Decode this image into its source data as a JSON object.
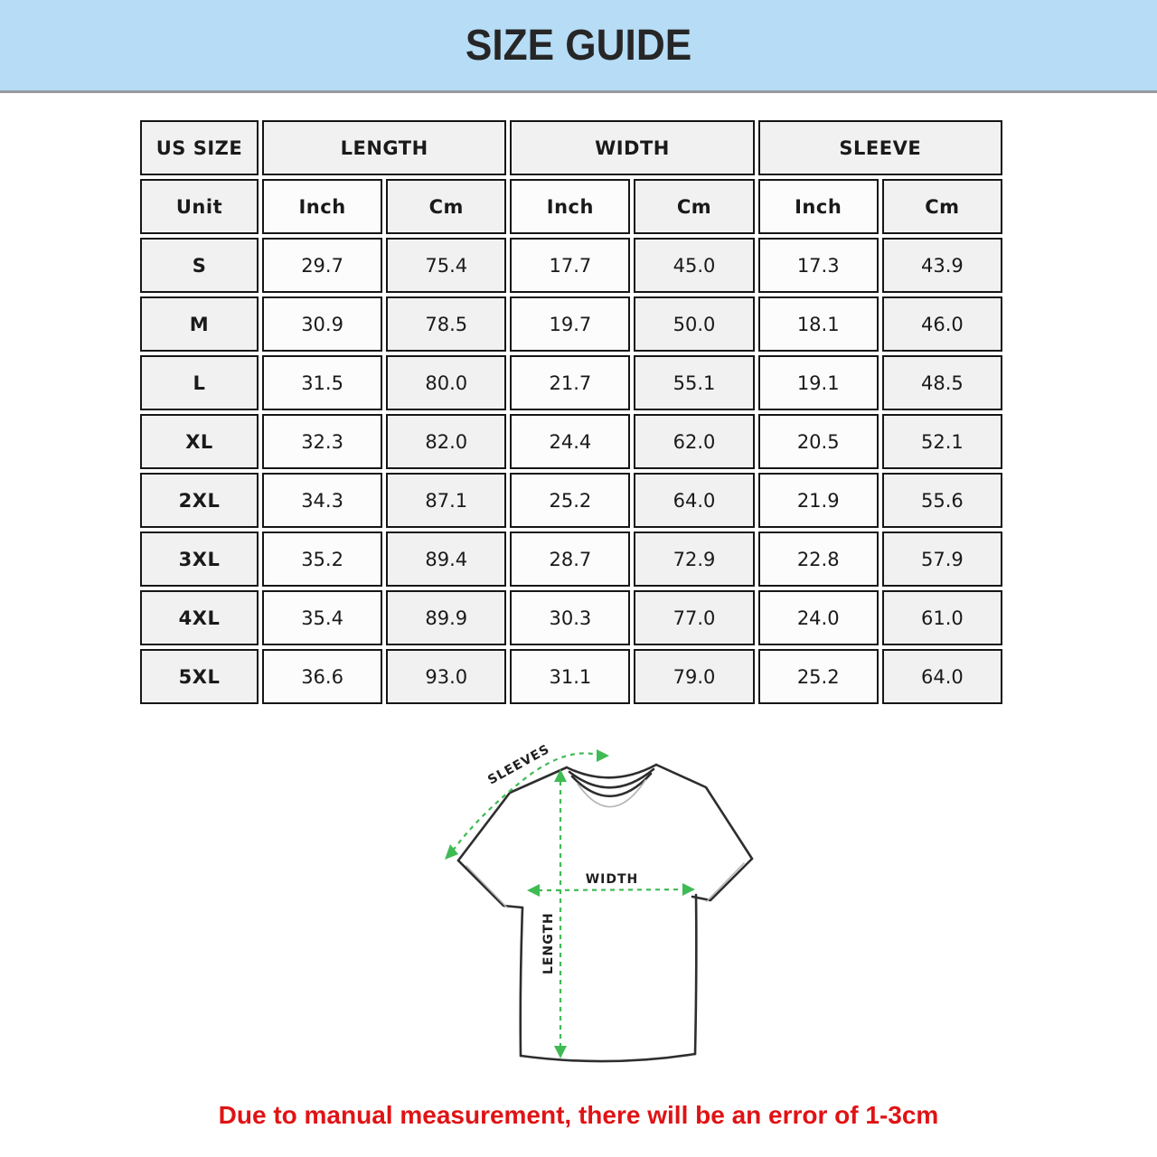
{
  "banner": {
    "title": "SIZE GUIDE",
    "bg_color": "#b6dcf6"
  },
  "table": {
    "group_headers": [
      {
        "label": "US SIZE",
        "span": 1
      },
      {
        "label": "LENGTH",
        "span": 2
      },
      {
        "label": "WIDTH",
        "span": 2
      },
      {
        "label": "SLEEVE",
        "span": 2
      }
    ],
    "unit_row": [
      "Unit",
      "Inch",
      "Cm",
      "Inch",
      "Cm",
      "Inch",
      "Cm"
    ],
    "rows": [
      {
        "size": "S",
        "values": [
          "29.7",
          "75.4",
          "17.7",
          "45.0",
          "17.3",
          "43.9"
        ]
      },
      {
        "size": "M",
        "values": [
          "30.9",
          "78.5",
          "19.7",
          "50.0",
          "18.1",
          "46.0"
        ]
      },
      {
        "size": "L",
        "values": [
          "31.5",
          "80.0",
          "21.7",
          "55.1",
          "19.1",
          "48.5"
        ]
      },
      {
        "size": "XL",
        "values": [
          "32.3",
          "82.0",
          "24.4",
          "62.0",
          "20.5",
          "52.1"
        ]
      },
      {
        "size": "2XL",
        "values": [
          "34.3",
          "87.1",
          "25.2",
          "64.0",
          "21.9",
          "55.6"
        ]
      },
      {
        "size": "3XL",
        "values": [
          "35.2",
          "89.4",
          "28.7",
          "72.9",
          "22.8",
          "57.9"
        ]
      },
      {
        "size": "4XL",
        "values": [
          "35.4",
          "89.9",
          "30.3",
          "77.0",
          "24.0",
          "61.0"
        ]
      },
      {
        "size": "5XL",
        "values": [
          "36.6",
          "93.0",
          "31.1",
          "79.0",
          "25.2",
          "64.0"
        ]
      }
    ]
  },
  "diagram": {
    "sleeves_label": "SLEEVES",
    "width_label": "WIDTH",
    "length_label": "LENGTH",
    "arrow_color": "#3fbb54"
  },
  "note": {
    "text": "Due to manual measurement, there will be an error of 1-3cm",
    "color": "#e01315"
  },
  "chart_data": {
    "type": "table",
    "title": "SIZE GUIDE",
    "columns": [
      "US SIZE",
      "LENGTH Inch",
      "LENGTH Cm",
      "WIDTH Inch",
      "WIDTH Cm",
      "SLEEVE Inch",
      "SLEEVE Cm"
    ],
    "rows": [
      [
        "S",
        29.7,
        75.4,
        17.7,
        45.0,
        17.3,
        43.9
      ],
      [
        "M",
        30.9,
        78.5,
        19.7,
        50.0,
        18.1,
        46.0
      ],
      [
        "L",
        31.5,
        80.0,
        21.7,
        55.1,
        19.1,
        48.5
      ],
      [
        "XL",
        32.3,
        82.0,
        24.4,
        62.0,
        20.5,
        52.1
      ],
      [
        "2XL",
        34.3,
        87.1,
        25.2,
        64.0,
        21.9,
        55.6
      ],
      [
        "3XL",
        35.2,
        89.4,
        28.7,
        72.9,
        22.8,
        57.9
      ],
      [
        "4XL",
        35.4,
        89.9,
        30.3,
        77.0,
        24.0,
        61.0
      ],
      [
        "5XL",
        36.6,
        93.0,
        31.1,
        79.0,
        25.2,
        64.0
      ]
    ],
    "annotations": [
      "Due to manual measurement, there will be an error of 1-3cm"
    ]
  }
}
